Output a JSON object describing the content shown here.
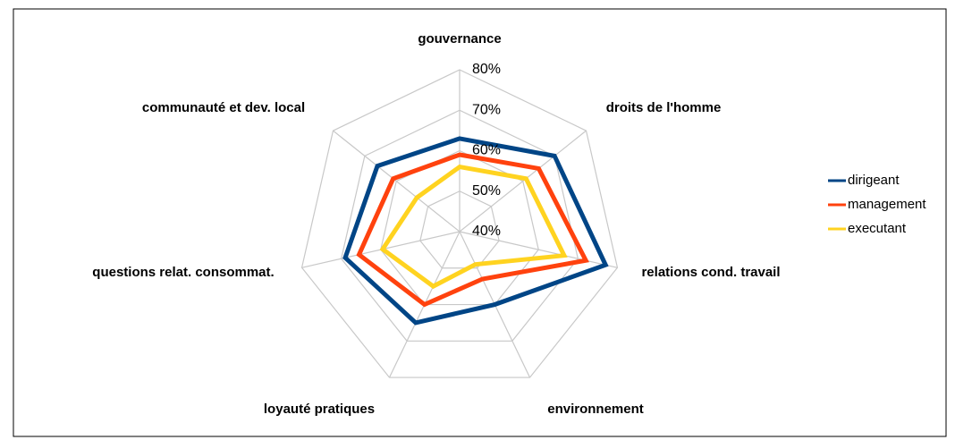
{
  "chart_data": {
    "type": "radar",
    "categories": [
      "gouvernance",
      "droits de l'homme",
      "relations cond. travail",
      "environnement",
      "loyauté pratiques",
      "questions relat. consommat.",
      "communauté et dev. local"
    ],
    "series": [
      {
        "name": "dirigeant",
        "color": "#004586",
        "values": [
          63,
          70,
          77,
          60,
          65,
          69,
          66
        ]
      },
      {
        "name": "management",
        "color": "#ff420e",
        "values": [
          59,
          65,
          72,
          53,
          60,
          65.5,
          61
        ]
      },
      {
        "name": "executant",
        "color": "#ffd320",
        "values": [
          56,
          61,
          66.5,
          49,
          55,
          59.5,
          53.5
        ]
      }
    ],
    "ylim": [
      40,
      80
    ],
    "yticks": [
      {
        "value": 40,
        "label": "40%"
      },
      {
        "value": 50,
        "label": "50%"
      },
      {
        "value": 60,
        "label": "60%"
      },
      {
        "value": 70,
        "label": "70%"
      },
      {
        "value": 80,
        "label": "80%"
      }
    ],
    "grid": true,
    "legend": "right"
  }
}
